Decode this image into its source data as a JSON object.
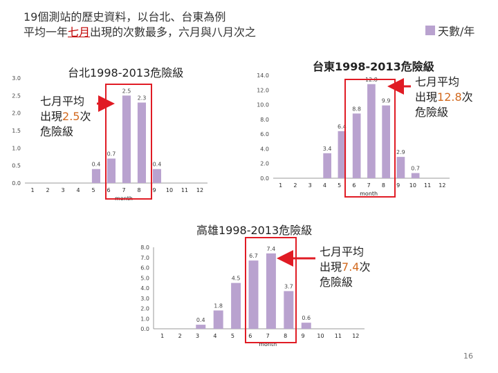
{
  "heading": {
    "line1": "19個測站的歷史資料，以台北、台東為例",
    "line2_pre": "平均一年",
    "line2_hl": "七月",
    "line2_post": "出現的次數最多，六月與八月次之"
  },
  "legend": {
    "label": "天數/年",
    "color": "#b9a2cf"
  },
  "accent_color": "#e01b24",
  "bar_color": "#b9a2cf",
  "chart_data": [
    {
      "type": "bar",
      "title": "台北1998-2013危險級",
      "xlabel": "month",
      "ylabel": "",
      "categories": [
        "1",
        "2",
        "3",
        "4",
        "5",
        "6",
        "7",
        "8",
        "9",
        "10",
        "11",
        "12"
      ],
      "values": [
        null,
        null,
        null,
        null,
        0.4,
        0.7,
        2.5,
        2.3,
        0.4,
        null,
        null,
        null
      ],
      "labels": [
        "",
        "",
        "",
        "",
        "0.4",
        "0.7",
        "2.5",
        "2.3",
        "0.4",
        "",
        "",
        ""
      ],
      "yticks": [
        "0.0",
        "0.5",
        "1.0",
        "1.5",
        "2.0",
        "2.5",
        "3.0"
      ],
      "ylim": [
        0,
        3.0
      ]
    },
    {
      "type": "bar",
      "title": "台東1998-2013危險級",
      "xlabel": "month",
      "ylabel": "",
      "categories": [
        "1",
        "2",
        "3",
        "4",
        "5",
        "6",
        "7",
        "8",
        "9",
        "10",
        "11",
        "12"
      ],
      "values": [
        null,
        null,
        null,
        3.4,
        6.4,
        8.8,
        12.8,
        9.9,
        2.9,
        0.7,
        null,
        null
      ],
      "labels": [
        "",
        "",
        "",
        "3.4",
        "6.4",
        "8.8",
        "12.8",
        "9.9",
        "2.9",
        "0.7",
        "",
        ""
      ],
      "yticks": [
        "0.0",
        "2.0",
        "4.0",
        "6.0",
        "8.0",
        "10.0",
        "12.0",
        "14.0"
      ],
      "ylim": [
        0,
        14.0
      ]
    },
    {
      "type": "bar",
      "title": "高雄1998-2013危險級",
      "xlabel": "month",
      "ylabel": "",
      "categories": [
        "1",
        "2",
        "3",
        "4",
        "5",
        "6",
        "7",
        "8",
        "9",
        "10",
        "11",
        "12"
      ],
      "values": [
        null,
        null,
        0.4,
        1.8,
        4.5,
        6.7,
        7.4,
        3.7,
        0.6,
        null,
        null,
        null
      ],
      "labels": [
        "",
        "",
        "0.4",
        "1.8",
        "4.5",
        "6.7",
        "7.4",
        "3.7",
        "0.6",
        "",
        "",
        ""
      ],
      "yticks": [
        "0.0",
        "1.0",
        "2.0",
        "3.0",
        "4.0",
        "5.0",
        "6.0",
        "7.0",
        "8.0"
      ],
      "ylim": [
        0,
        8.0
      ]
    }
  ],
  "notes": {
    "taipei": {
      "line1": "七月平均",
      "pre": "出現",
      "num": "2.5",
      "post": "次",
      "line3": "危險級"
    },
    "taitung": {
      "line1": "七月平均",
      "pre": "出現",
      "num": "12.8",
      "post": "次",
      "line3": "危險級"
    },
    "kaohsiung": {
      "line1": "七月平均",
      "pre": "出現",
      "num": "7.4",
      "post": "次",
      "line3": "危險級"
    }
  },
  "page_number": "16"
}
